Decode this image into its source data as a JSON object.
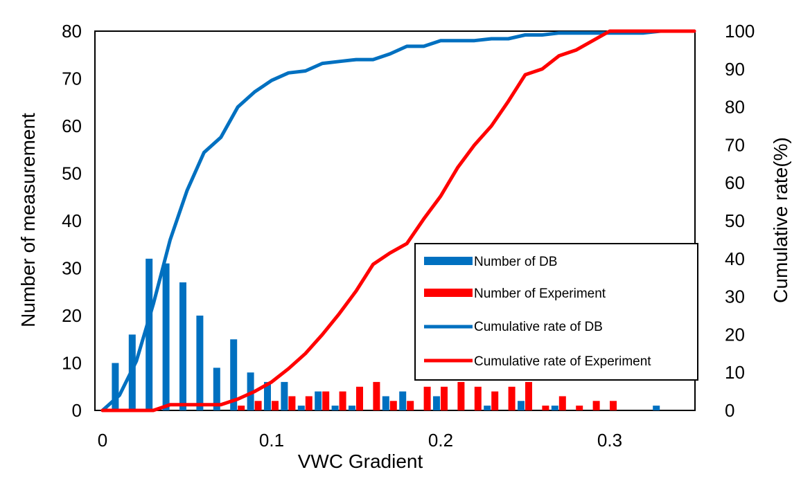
{
  "chart_data": {
    "type": "bar",
    "xlabel": "VWC Gradient",
    "ylabel_left": "Number of measurement",
    "ylabel_right": "Cumulative rate(%)",
    "xlim": [
      0,
      0.35
    ],
    "ylim_left": [
      0,
      80
    ],
    "ylim_right": [
      0,
      100
    ],
    "x_ticks": [
      "0",
      "0.1",
      "0.2",
      "0.3"
    ],
    "x_tick_values": [
      0,
      0.1,
      0.2,
      0.3
    ],
    "y_left_ticks": [
      "0",
      "10",
      "20",
      "30",
      "40",
      "50",
      "60",
      "70",
      "80"
    ],
    "y_left_tick_values": [
      0,
      10,
      20,
      30,
      40,
      50,
      60,
      70,
      80
    ],
    "y_right_ticks": [
      "0",
      "10",
      "20",
      "30",
      "40",
      "50",
      "60",
      "70",
      "80",
      "90",
      "100"
    ],
    "y_right_tick_values": [
      0,
      10,
      20,
      30,
      40,
      50,
      60,
      70,
      80,
      90,
      100
    ],
    "legend_position": "lower-right",
    "grid": false,
    "colors": {
      "db": "#0070C0",
      "experiment": "#FF0000"
    },
    "bar_series": [
      {
        "name": "Number of DB",
        "color": "#0070C0",
        "x": [
          0.01,
          0.02,
          0.03,
          0.04,
          0.05,
          0.06,
          0.07,
          0.08,
          0.09,
          0.1,
          0.11,
          0.12,
          0.13,
          0.14,
          0.15,
          0.17,
          0.18,
          0.2,
          0.23,
          0.25,
          0.27,
          0.33
        ],
        "values": [
          10,
          16,
          32,
          31,
          27,
          20,
          9,
          15,
          8,
          6,
          6,
          1,
          4,
          1,
          1,
          3,
          4,
          3,
          1,
          2,
          1,
          1
        ]
      },
      {
        "name": "Number of Experiment",
        "color": "#FF0000",
        "x": [
          0.08,
          0.09,
          0.1,
          0.11,
          0.12,
          0.13,
          0.14,
          0.15,
          0.16,
          0.17,
          0.18,
          0.19,
          0.2,
          0.21,
          0.22,
          0.23,
          0.24,
          0.25,
          0.26,
          0.27,
          0.28,
          0.29,
          0.3
        ],
        "values": [
          1,
          2,
          2,
          3,
          3,
          4,
          4,
          5,
          6,
          2,
          2,
          5,
          5,
          6,
          5,
          4,
          5,
          6,
          1,
          3,
          1,
          2,
          2
        ]
      }
    ],
    "line_series": [
      {
        "name": "Cumulative rate of DB",
        "color": "#0070C0",
        "x": [
          0,
          0.01,
          0.02,
          0.03,
          0.04,
          0.05,
          0.06,
          0.07,
          0.08,
          0.09,
          0.1,
          0.11,
          0.12,
          0.13,
          0.14,
          0.15,
          0.16,
          0.17,
          0.18,
          0.19,
          0.2,
          0.21,
          0.22,
          0.23,
          0.24,
          0.25,
          0.26,
          0.27,
          0.28,
          0.29,
          0.3,
          0.31,
          0.32,
          0.33,
          0.34,
          0.35
        ],
        "values": [
          0,
          4,
          13,
          28,
          45,
          58,
          68,
          72,
          80,
          84,
          87,
          89,
          89.5,
          91.5,
          92,
          92.5,
          92.5,
          94,
          96,
          96,
          97.5,
          97.5,
          97.5,
          98,
          98,
          99,
          99,
          99.5,
          99.5,
          99.5,
          99.5,
          99.5,
          99.5,
          100,
          100,
          100
        ]
      },
      {
        "name": "Cumulative rate of Experiment",
        "color": "#FF0000",
        "x": [
          0,
          0.01,
          0.02,
          0.03,
          0.04,
          0.05,
          0.06,
          0.07,
          0.08,
          0.09,
          0.1,
          0.11,
          0.12,
          0.13,
          0.14,
          0.15,
          0.16,
          0.17,
          0.18,
          0.19,
          0.2,
          0.21,
          0.22,
          0.23,
          0.24,
          0.25,
          0.26,
          0.27,
          0.28,
          0.29,
          0.3,
          0.31,
          0.32,
          0.33,
          0.34,
          0.35
        ],
        "values": [
          0,
          0,
          0,
          0,
          1.5,
          1.5,
          1.5,
          1.5,
          3,
          5,
          7.5,
          11,
          15,
          20,
          25.5,
          31.5,
          38.5,
          41.5,
          44,
          50.5,
          56.5,
          64,
          70,
          75,
          81.5,
          88.5,
          90,
          93.5,
          95,
          97.5,
          100,
          100,
          100,
          100,
          100,
          100
        ]
      }
    ]
  }
}
